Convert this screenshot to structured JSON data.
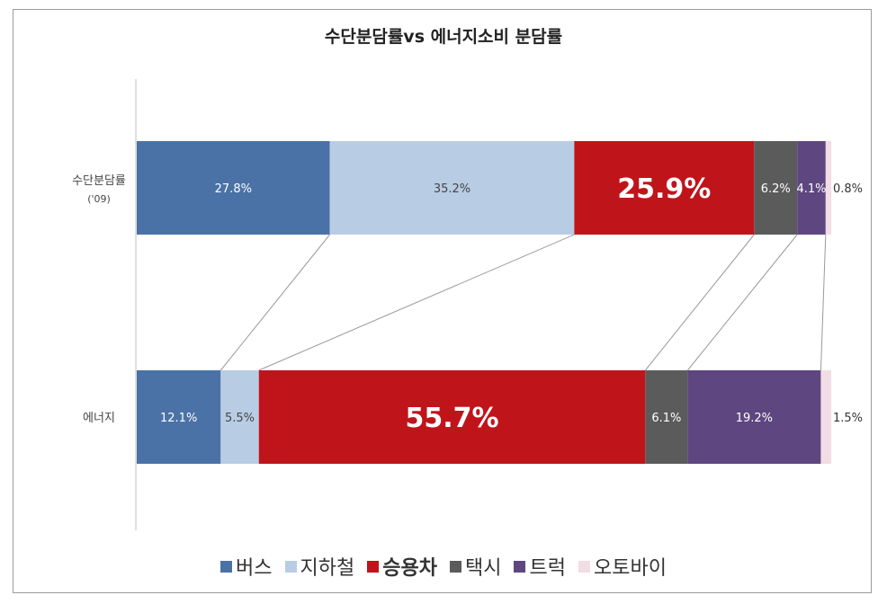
{
  "title": "수단분담률vs 에너지소비 분담률",
  "chart_data": {
    "type": "bar",
    "stacked": true,
    "orientation": "horizontal",
    "percent": true,
    "categories": [
      "수단분담률\n('09)",
      "에너지"
    ],
    "series": [
      {
        "name": "버스",
        "color": "#4a72a6",
        "values": [
          27.8,
          12.1
        ],
        "labels": [
          "27.8%",
          "12.1%"
        ]
      },
      {
        "name": "지하철",
        "color": "#b8cde4",
        "values": [
          35.2,
          5.5
        ],
        "labels": [
          "35.2%",
          "5.5%"
        ]
      },
      {
        "name": "승용차",
        "color": "#c0141b",
        "values": [
          25.9,
          55.7
        ],
        "labels": [
          "25.9%",
          "55.7%"
        ]
      },
      {
        "name": "택시",
        "color": "#5b5b5b",
        "values": [
          6.2,
          6.1
        ],
        "labels": [
          "6.2%",
          "6.1%"
        ]
      },
      {
        "name": "트럭",
        "color": "#5e4680",
        "values": [
          4.1,
          19.2
        ],
        "labels": [
          "4.1%",
          "19.2%"
        ]
      },
      {
        "name": "오토바이",
        "color": "#f1dde3",
        "values": [
          0.8,
          1.5
        ],
        "labels": [
          "0.8%",
          "1.5%"
        ]
      }
    ],
    "highlight_series": "승용차",
    "legend_position": "bottom",
    "grid": false
  }
}
